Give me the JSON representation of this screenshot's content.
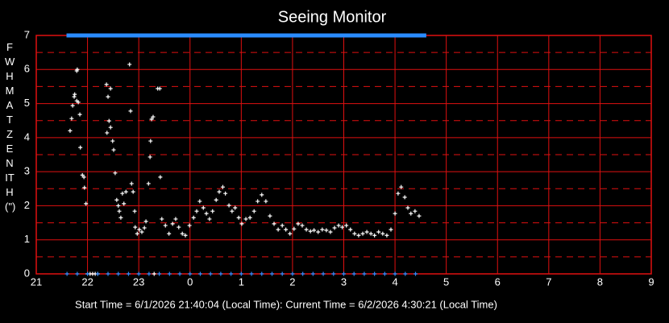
{
  "chart_data": {
    "type": "scatter",
    "title": "Seeing Monitor",
    "ylabel": "FWHM AT ZENITH (\")",
    "annotation": "Start Time = 6/1/2026 21:40:04 (Local Time): Current Time = 6/2/2026 4:30:21 (Local Time)",
    "xlim": [
      21,
      33
    ],
    "ylim": [
      0,
      7
    ],
    "xticks": [
      21,
      22,
      23,
      {
        "value": 24,
        "label": "0"
      },
      {
        "value": 25,
        "label": "1"
      },
      {
        "value": 26,
        "label": "2"
      },
      {
        "value": 27,
        "label": "3"
      },
      {
        "value": 28,
        "label": "4"
      },
      {
        "value": 29,
        "label": "5"
      },
      {
        "value": 30,
        "label": "6"
      },
      {
        "value": 31,
        "label": "7"
      },
      {
        "value": 32,
        "label": "8"
      },
      {
        "value": 33,
        "label": "9"
      }
    ],
    "yticks": [
      0,
      1,
      2,
      3,
      4,
      5,
      6,
      7
    ],
    "grid": true,
    "grid_color": "#e01010",
    "series": [
      {
        "color": "#ffffff",
        "marker": "plus",
        "x": [
          21.66,
          21.69,
          21.71,
          21.74,
          21.75,
          21.79,
          21.8,
          21.79,
          21.82,
          21.85,
          21.86,
          21.9,
          21.93,
          21.94,
          21.97,
          22.37,
          22.4,
          22.45,
          22.38,
          22.42,
          22.45,
          22.49,
          22.51,
          22.54,
          22.57,
          22.6,
          22.62,
          22.65,
          22.68,
          22.71,
          22.75,
          22.82,
          22.84,
          22.86,
          22.89,
          22.92,
          22.93,
          22.97,
          23.01,
          23.06,
          23.11,
          23.14,
          23.19,
          23.22,
          23.23,
          23.25,
          23.28,
          23.37,
          23.41,
          23.42,
          23.45,
          23.52,
          23.59,
          23.66,
          23.72,
          23.78,
          23.85,
          23.91,
          23.99,
          24.07,
          24.13,
          24.19,
          24.26,
          24.32,
          24.38,
          24.44,
          24.51,
          24.57,
          24.64,
          24.69,
          24.76,
          24.82,
          24.88,
          24.95,
          25.01,
          25.09,
          25.17,
          25.25,
          25.32,
          25.4,
          25.48,
          25.56,
          25.64,
          25.72,
          25.8,
          25.87,
          25.95,
          26.03,
          26.11,
          26.19,
          26.27,
          26.35,
          26.42,
          26.5,
          26.58,
          26.66,
          26.74,
          26.82,
          26.9,
          26.97,
          27.05,
          27.13,
          27.21,
          27.29,
          27.37,
          27.45,
          27.53,
          27.6,
          27.68,
          27.76,
          27.84,
          27.92,
          28.0,
          28.06,
          28.12,
          28.19,
          28.25,
          28.31,
          28.39,
          28.47,
          22.0,
          22.05,
          22.1,
          22.15,
          22.2,
          23.3
        ],
        "values": [
          4.2,
          4.56,
          4.94,
          5.2,
          5.27,
          5.96,
          6.0,
          5.08,
          5.04,
          4.68,
          3.71,
          2.9,
          2.84,
          2.53,
          2.06,
          5.56,
          5.2,
          5.44,
          4.14,
          4.49,
          4.3,
          3.9,
          3.64,
          2.96,
          2.17,
          2.0,
          1.84,
          1.65,
          2.36,
          2.06,
          2.41,
          6.15,
          4.78,
          2.65,
          2.41,
          1.84,
          1.37,
          1.18,
          1.3,
          1.23,
          1.35,
          1.54,
          2.65,
          3.43,
          3.9,
          4.54,
          4.61,
          5.44,
          5.44,
          2.84,
          1.61,
          1.42,
          1.18,
          1.47,
          1.61,
          1.37,
          1.18,
          1.13,
          1.42,
          1.65,
          1.84,
          2.13,
          1.94,
          1.77,
          1.61,
          1.84,
          2.17,
          2.41,
          2.55,
          2.36,
          2.01,
          1.84,
          1.94,
          1.65,
          1.47,
          1.61,
          1.65,
          1.84,
          2.13,
          2.32,
          2.13,
          1.7,
          1.47,
          1.3,
          1.42,
          1.3,
          1.18,
          1.32,
          1.47,
          1.42,
          1.3,
          1.25,
          1.28,
          1.23,
          1.3,
          1.28,
          1.23,
          1.35,
          1.42,
          1.37,
          1.42,
          1.3,
          1.18,
          1.13,
          1.18,
          1.23,
          1.18,
          1.13,
          1.23,
          1.18,
          1.13,
          1.3,
          1.77,
          2.36,
          2.55,
          2.25,
          1.94,
          1.77,
          1.84,
          1.7,
          0,
          0,
          0,
          0,
          0,
          0
        ]
      },
      {
        "color": "#2a8cff",
        "marker": "square",
        "x": [
          21.7,
          21.9,
          22.1,
          22.3,
          22.5,
          22.7,
          22.9,
          23.1,
          23.3,
          23.5,
          23.7,
          23.9,
          24.1,
          24.3,
          24.5,
          24.7,
          24.9,
          25.1,
          25.3,
          25.5,
          25.7,
          25.9,
          26.1,
          26.3,
          26.5,
          26.7,
          26.9,
          27.1,
          27.3,
          27.5,
          27.7,
          27.9,
          28.1,
          28.3,
          28.5
        ],
        "values": [
          7,
          7,
          7,
          7,
          7,
          7,
          7,
          7,
          7,
          7,
          7,
          7,
          7,
          7,
          7,
          7,
          7,
          7,
          7,
          7,
          7,
          7,
          7,
          7,
          7,
          7,
          7,
          7,
          7,
          7,
          7,
          7,
          7,
          7,
          7
        ]
      },
      {
        "color": "#2a8cff",
        "marker": "plus",
        "x": [
          21.6,
          21.8,
          22.0,
          22.2,
          22.4,
          22.6,
          22.8,
          23.0,
          23.2,
          23.4,
          23.6,
          23.8,
          24.0,
          24.2,
          24.4,
          24.6,
          24.8,
          25.0,
          25.2,
          25.4,
          25.6,
          25.8,
          26.0,
          26.2,
          26.4,
          26.6,
          26.8,
          27.0,
          27.2,
          27.4,
          27.6,
          27.8,
          28.0,
          28.2,
          28.4
        ],
        "values": [
          0,
          0,
          0,
          0,
          0,
          0,
          0,
          0,
          0,
          0,
          0,
          0,
          0,
          0,
          0,
          0,
          0,
          0,
          0,
          0,
          0,
          0,
          0,
          0,
          0,
          0,
          0,
          0,
          0,
          0,
          0,
          0,
          0,
          0,
          0
        ]
      }
    ]
  }
}
